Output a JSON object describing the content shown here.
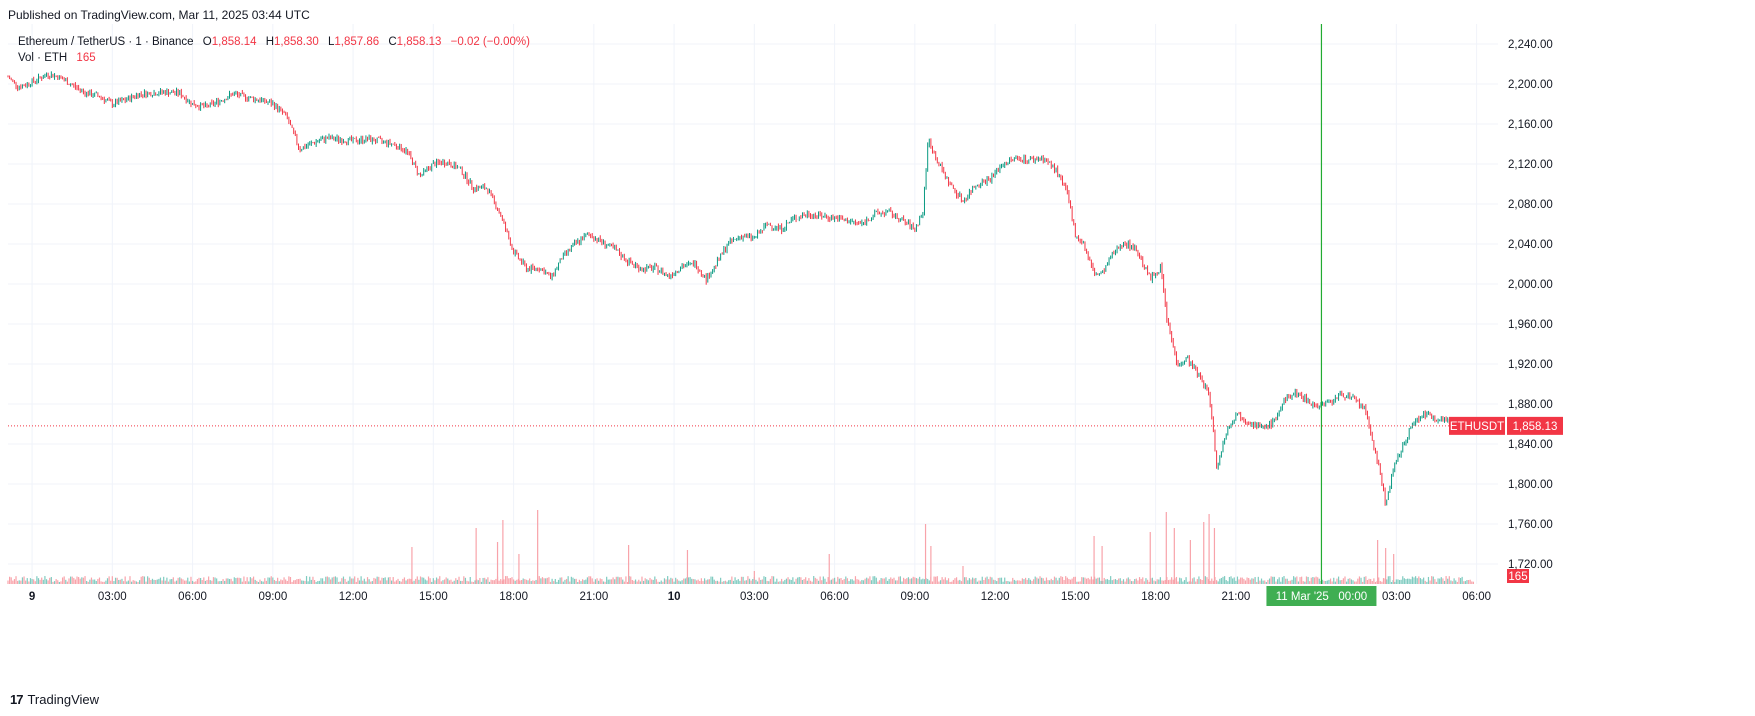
{
  "published": "Published on TradingView.com, Mar 11, 2025 03:44 UTC",
  "footer": {
    "logo_glyph": "17",
    "brand": "TradingView"
  },
  "legend": {
    "symbol": "Ethereum / TetherUS · 1 · Binance",
    "o_label": "O",
    "o_value": "1,858.14",
    "h_label": "H",
    "h_value": "1,858.30",
    "l_label": "L",
    "l_value": "1,857.86",
    "c_label": "C",
    "c_value": "1,858.13",
    "change": "−0.02 (−0.00%)",
    "vol_label": "Vol · ETH",
    "vol_value": "165"
  },
  "colors": {
    "up": "#089981",
    "down": "#f23645",
    "grid": "#f0f3fa",
    "crosshair": "#22ab31",
    "up_vol": "#7fcbc0",
    "down_vol": "#f8a3aa"
  },
  "chart_data": {
    "type": "candlestick",
    "symbol": "ETHUSDT",
    "exchange": "Binance",
    "interval": "1",
    "ylim": [
      1700,
      2260
    ],
    "y_ticks": [
      "2,240.00",
      "2,200.00",
      "2,160.00",
      "2,120.00",
      "2,080.00",
      "2,040.00",
      "2,000.00",
      "1,960.00",
      "1,920.00",
      "1,880.00",
      "1,840.00",
      "1,800.00",
      "1,760.00",
      "1,720.00"
    ],
    "x_tick_labels": [
      "9",
      "03:00",
      "06:00",
      "09:00",
      "12:00",
      "15:00",
      "18:00",
      "21:00",
      "10",
      "03:00",
      "06:00",
      "09:00",
      "12:00",
      "15:00",
      "18:00",
      "21:00",
      "03:00",
      "06:00"
    ],
    "x_tick_hours": [
      0,
      3,
      6,
      9,
      12,
      15,
      18,
      21,
      24,
      27,
      30,
      33,
      36,
      39,
      42,
      45,
      51,
      54
    ],
    "x_range_hours": [
      -0.9,
      54.8
    ],
    "last_bar_hours": 51.73,
    "price_path": [
      [
        -0.9,
        2207
      ],
      [
        -0.5,
        2197
      ],
      [
        0.0,
        2202
      ],
      [
        0.6,
        2210
      ],
      [
        1.0,
        2207
      ],
      [
        1.5,
        2199
      ],
      [
        2.0,
        2191
      ],
      [
        2.5,
        2188
      ],
      [
        3.0,
        2180
      ],
      [
        3.5,
        2184
      ],
      [
        4.0,
        2190
      ],
      [
        5.0,
        2192
      ],
      [
        5.5,
        2191
      ],
      [
        6.0,
        2180
      ],
      [
        6.5,
        2177
      ],
      [
        7.0,
        2183
      ],
      [
        7.5,
        2190
      ],
      [
        8.0,
        2187
      ],
      [
        8.5,
        2184
      ],
      [
        9.0,
        2180
      ],
      [
        9.5,
        2168
      ],
      [
        10.0,
        2135
      ],
      [
        10.5,
        2141
      ],
      [
        11.0,
        2146
      ],
      [
        12.0,
        2143
      ],
      [
        12.5,
        2145
      ],
      [
        13.0,
        2143
      ],
      [
        13.5,
        2140
      ],
      [
        14.0,
        2133
      ],
      [
        14.5,
        2108
      ],
      [
        15.0,
        2120
      ],
      [
        15.5,
        2122
      ],
      [
        16.0,
        2115
      ],
      [
        16.5,
        2096
      ],
      [
        17.0,
        2096
      ],
      [
        17.5,
        2070
      ],
      [
        18.0,
        2032
      ],
      [
        18.5,
        2015
      ],
      [
        19.0,
        2016
      ],
      [
        19.4,
        2006
      ],
      [
        19.8,
        2026
      ],
      [
        20.3,
        2040
      ],
      [
        20.8,
        2050
      ],
      [
        21.3,
        2042
      ],
      [
        21.8,
        2034
      ],
      [
        22.3,
        2022
      ],
      [
        22.8,
        2015
      ],
      [
        23.3,
        2016
      ],
      [
        23.8,
        2008
      ],
      [
        24.3,
        2018
      ],
      [
        24.8,
        2020
      ],
      [
        25.2,
        2005
      ],
      [
        25.6,
        2021
      ],
      [
        26.0,
        2040
      ],
      [
        26.5,
        2048
      ],
      [
        27.0,
        2046
      ],
      [
        27.5,
        2060
      ],
      [
        28.0,
        2055
      ],
      [
        28.5,
        2066
      ],
      [
        29.0,
        2070
      ],
      [
        30.0,
        2066
      ],
      [
        31.0,
        2060
      ],
      [
        31.5,
        2070
      ],
      [
        32.0,
        2072
      ],
      [
        32.5,
        2064
      ],
      [
        33.0,
        2055
      ],
      [
        33.3,
        2072
      ],
      [
        33.5,
        2145
      ],
      [
        33.8,
        2125
      ],
      [
        34.3,
        2100
      ],
      [
        34.8,
        2083
      ],
      [
        35.3,
        2100
      ],
      [
        35.8,
        2105
      ],
      [
        36.3,
        2120
      ],
      [
        36.8,
        2126
      ],
      [
        37.3,
        2124
      ],
      [
        37.8,
        2126
      ],
      [
        38.3,
        2113
      ],
      [
        38.7,
        2090
      ],
      [
        39.0,
        2050
      ],
      [
        39.3,
        2040
      ],
      [
        39.7,
        2010
      ],
      [
        40.0,
        2010
      ],
      [
        40.4,
        2030
      ],
      [
        40.8,
        2042
      ],
      [
        41.3,
        2034
      ],
      [
        41.8,
        2005
      ],
      [
        42.2,
        2017
      ],
      [
        42.4,
        1968
      ],
      [
        42.8,
        1920
      ],
      [
        43.2,
        1925
      ],
      [
        43.7,
        1905
      ],
      [
        44.0,
        1890
      ],
      [
        44.3,
        1815
      ],
      [
        44.6,
        1850
      ],
      [
        45.0,
        1870
      ],
      [
        45.5,
        1863
      ],
      [
        46.0,
        1855
      ],
      [
        46.4,
        1862
      ],
      [
        46.8,
        1882
      ],
      [
        47.2,
        1892
      ],
      [
        47.6,
        1885
      ],
      [
        48.0,
        1878
      ],
      [
        48.5,
        1882
      ],
      [
        49.0,
        1890
      ],
      [
        49.5,
        1883
      ],
      [
        49.8,
        1875
      ],
      [
        50.1,
        1845
      ],
      [
        50.4,
        1810
      ],
      [
        50.6,
        1780
      ],
      [
        50.9,
        1815
      ],
      [
        51.2,
        1835
      ],
      [
        51.6,
        1860
      ],
      [
        52.0,
        1870
      ],
      [
        52.5,
        1866
      ],
      [
        53.0,
        1863
      ],
      [
        53.5,
        1860
      ],
      [
        53.9,
        1858
      ]
    ],
    "last_price": {
      "label": "ETHUSDT",
      "value": "1,858.13",
      "price": 1858.13
    },
    "volume_label": "165",
    "volume_spikes_hours": [
      [
        14.2,
        37
      ],
      [
        16.6,
        56
      ],
      [
        17.4,
        42
      ],
      [
        17.6,
        64
      ],
      [
        18.2,
        30
      ],
      [
        18.9,
        74
      ],
      [
        22.3,
        39
      ],
      [
        24.5,
        34
      ],
      [
        27.0,
        13
      ],
      [
        29.8,
        30
      ],
      [
        33.4,
        60
      ],
      [
        33.6,
        38
      ],
      [
        34.8,
        18
      ],
      [
        39.7,
        48
      ],
      [
        40.0,
        38
      ],
      [
        41.8,
        52
      ],
      [
        42.4,
        72
      ],
      [
        42.7,
        56
      ],
      [
        43.3,
        44
      ],
      [
        43.8,
        62
      ],
      [
        44.0,
        70
      ],
      [
        44.2,
        56
      ],
      [
        50.3,
        44
      ],
      [
        50.6,
        36
      ],
      [
        50.9,
        30
      ]
    ],
    "crosshair": {
      "hour": 48.2,
      "label": "11 Mar '25   00:00"
    }
  }
}
